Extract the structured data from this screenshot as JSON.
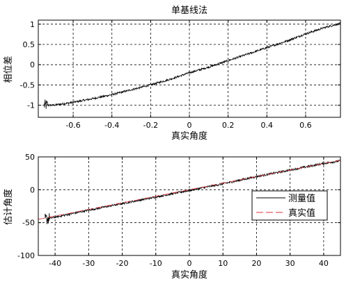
{
  "chart_data": [
    {
      "type": "line",
      "title": "单基线法",
      "xlabel": "真实角度",
      "ylabel": "相位差",
      "xlim": [
        -0.78,
        0.78
      ],
      "ylim": [
        -1.3,
        1.1
      ],
      "xticks": [
        "-0.6",
        "-0.4",
        "-0.2",
        "0",
        "0.2",
        "0.4",
        "0.6"
      ],
      "xtick_values": [
        -0.6,
        -0.4,
        -0.2,
        0,
        0.2,
        0.4,
        0.6
      ],
      "yticks": [
        "1",
        "0.5",
        "0",
        "-0.5",
        "-1"
      ],
      "ytick_values": [
        1,
        0.5,
        0,
        -0.5,
        -1
      ],
      "grid": true,
      "series": [
        {
          "color": "#000000",
          "x": [
            -0.75,
            -0.7,
            -0.6,
            -0.5,
            -0.4,
            -0.3,
            -0.2,
            -0.1,
            0,
            0.1,
            0.2,
            0.3,
            0.4,
            0.5,
            0.6,
            0.7,
            0.78
          ],
          "y": [
            -1.0,
            -1.0,
            -0.93,
            -0.84,
            -0.74,
            -0.62,
            -0.5,
            -0.36,
            -0.2,
            -0.06,
            0.1,
            0.26,
            0.42,
            0.58,
            0.76,
            0.92,
            1.02
          ]
        }
      ]
    },
    {
      "type": "line",
      "title": "",
      "xlabel": "真实角度",
      "ylabel": "估计角度",
      "xlim": [
        -45,
        45
      ],
      "ylim": [
        -100,
        50
      ],
      "xticks": [
        "-40",
        "-30",
        "-20",
        "-10",
        "0",
        "10",
        "20",
        "30",
        "40"
      ],
      "xtick_values": [
        -40,
        -30,
        -20,
        -10,
        0,
        10,
        20,
        30,
        40
      ],
      "yticks": [
        "50",
        "0",
        "-50",
        "-100"
      ],
      "ytick_values": [
        50,
        0,
        -50,
        -100
      ],
      "grid": true,
      "legend": "right",
      "series": [
        {
          "name": "测量值",
          "color": "#000000",
          "x": [
            -43,
            -30,
            -20,
            -10,
            0,
            10,
            20,
            30,
            40,
            45
          ],
          "y": [
            -45,
            -31,
            -21,
            -11,
            -1,
            9,
            20,
            30,
            40,
            44
          ]
        },
        {
          "name": "真实值",
          "color": "#e0303a",
          "x": [
            -45,
            45
          ],
          "y": [
            -45,
            45
          ]
        }
      ]
    }
  ]
}
